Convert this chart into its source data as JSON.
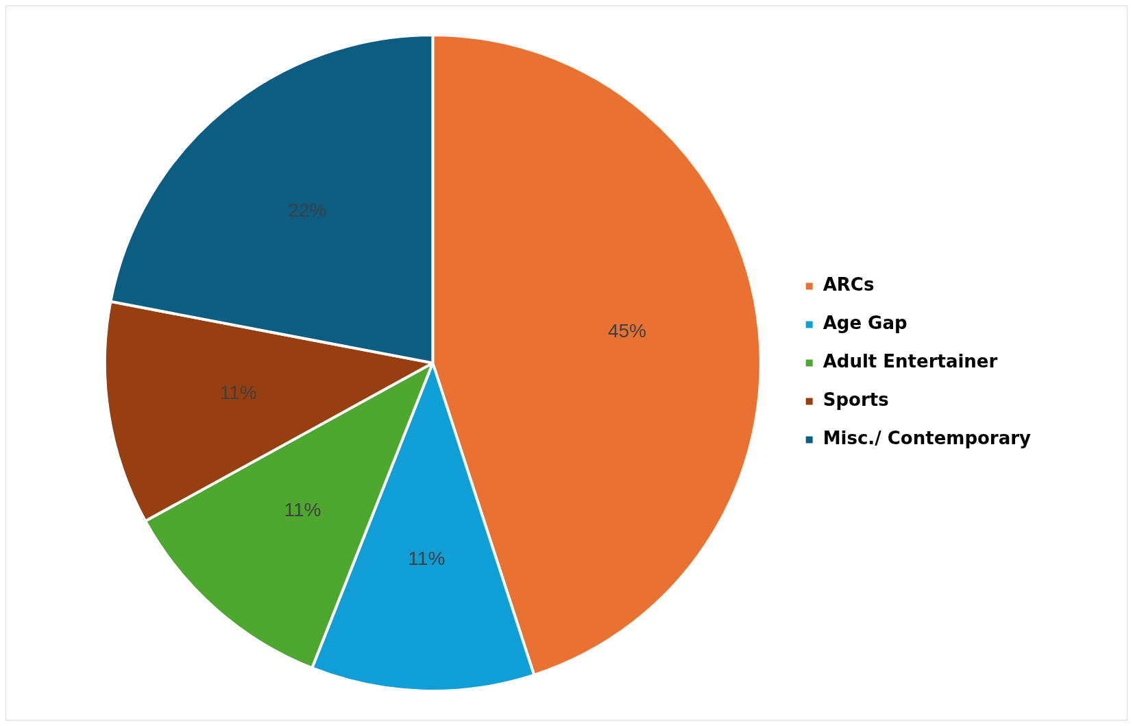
{
  "chart_data": {
    "type": "pie",
    "categories": [
      "ARCs",
      "Age Gap",
      "Adult Entertainer",
      "Sports",
      "Misc./ Contemporary"
    ],
    "values": [
      45,
      11,
      11,
      11,
      22
    ],
    "colors": [
      "#e97132",
      "#0f9ed5",
      "#4ea72e",
      "#973f10",
      "#0b5e81"
    ],
    "value_labels": [
      "45%",
      "11%",
      "11%",
      "11%",
      "22%"
    ],
    "legend": "right"
  }
}
